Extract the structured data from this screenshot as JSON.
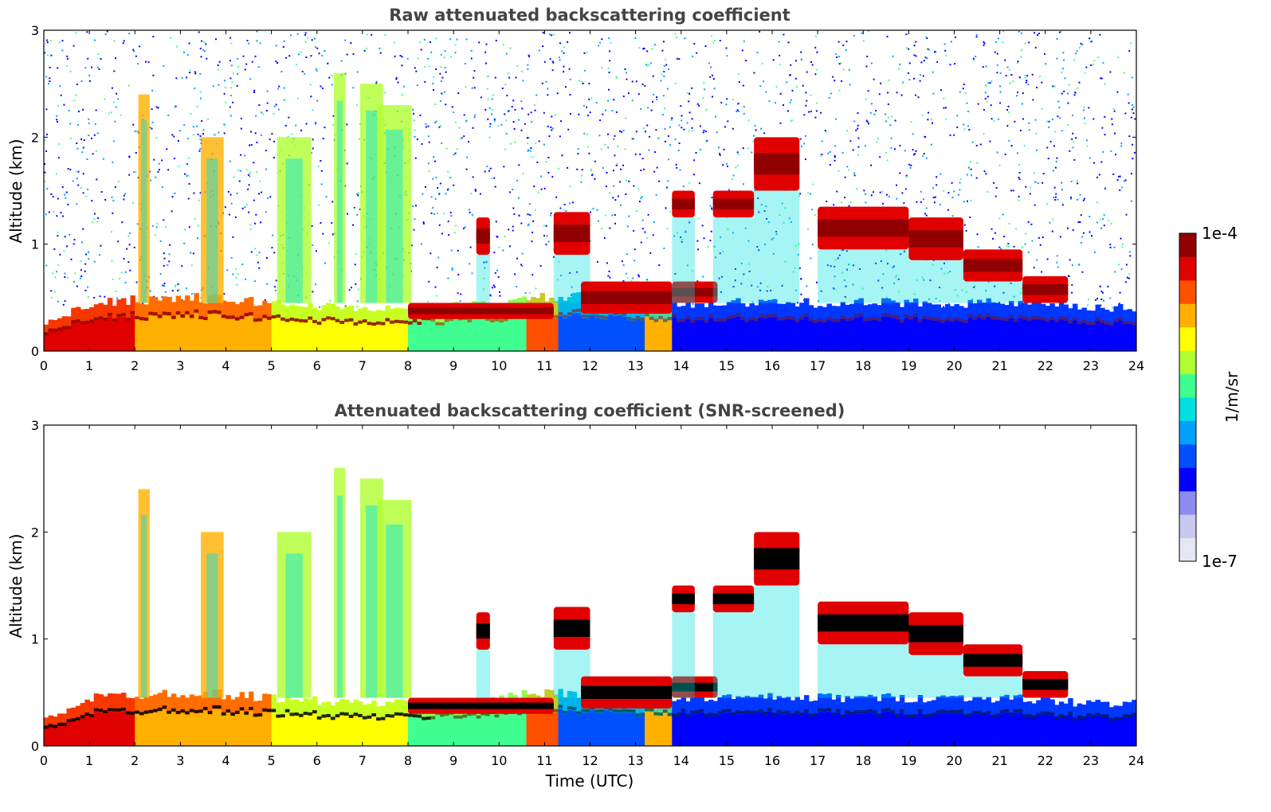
{
  "chart_data": [
    {
      "type": "heatmap",
      "title": "Raw attenuated backscattering coefficient",
      "xlabel": "",
      "ylabel": "Altitude (km)",
      "xlim": [
        0,
        24
      ],
      "ylim": [
        0,
        3
      ],
      "x_ticks": [
        "0",
        "1",
        "2",
        "3",
        "4",
        "5",
        "6",
        "7",
        "8",
        "9",
        "10",
        "11",
        "12",
        "13",
        "14",
        "15",
        "16",
        "17",
        "18",
        "19",
        "20",
        "21",
        "22",
        "23",
        "24"
      ],
      "y_ticks": [
        "0",
        "1",
        "2",
        "3"
      ],
      "screened": false,
      "boundary_layer_top_km": [
        [
          0,
          0.25
        ],
        [
          1,
          0.45
        ],
        [
          2,
          0.48
        ],
        [
          3,
          0.5
        ],
        [
          4,
          0.48
        ],
        [
          5,
          0.45
        ],
        [
          6,
          0.42
        ],
        [
          7,
          0.4
        ],
        [
          8,
          0.4
        ],
        [
          9,
          0.42
        ],
        [
          10,
          0.45
        ],
        [
          11,
          0.5
        ],
        [
          12,
          0.5
        ],
        [
          13,
          0.45
        ],
        [
          14,
          0.45
        ],
        [
          15,
          0.45
        ],
        [
          16,
          0.45
        ],
        [
          17,
          0.45
        ],
        [
          18,
          0.45
        ],
        [
          19,
          0.45
        ],
        [
          20,
          0.45
        ],
        [
          21,
          0.45
        ],
        [
          22,
          0.42
        ],
        [
          23,
          0.4
        ],
        [
          24,
          0.4
        ]
      ],
      "cloud_layers": [
        {
          "t0": 8.0,
          "t1": 11.2,
          "base_km": 0.3,
          "top_km": 0.45
        },
        {
          "t0": 9.5,
          "t1": 9.8,
          "base_km": 0.9,
          "top_km": 1.25
        },
        {
          "t0": 11.2,
          "t1": 12.0,
          "base_km": 0.9,
          "top_km": 1.3
        },
        {
          "t0": 11.8,
          "t1": 13.8,
          "base_km": 0.35,
          "top_km": 0.65
        },
        {
          "t0": 13.8,
          "t1": 14.8,
          "base_km": 0.45,
          "top_km": 0.65
        },
        {
          "t0": 13.8,
          "t1": 14.3,
          "base_km": 1.25,
          "top_km": 1.5
        },
        {
          "t0": 14.7,
          "t1": 15.6,
          "base_km": 1.25,
          "top_km": 1.5
        },
        {
          "t0": 15.6,
          "t1": 16.6,
          "base_km": 1.5,
          "top_km": 2.0
        },
        {
          "t0": 17.0,
          "t1": 19.0,
          "base_km": 0.95,
          "top_km": 1.35
        },
        {
          "t0": 19.0,
          "t1": 20.2,
          "base_km": 0.85,
          "top_km": 1.25
        },
        {
          "t0": 20.2,
          "t1": 21.5,
          "base_km": 0.65,
          "top_km": 0.95
        },
        {
          "t0": 21.5,
          "t1": 22.5,
          "base_km": 0.45,
          "top_km": 0.7
        }
      ],
      "aerosol_plumes": [
        {
          "t": 2.2,
          "top_km": 2.4
        },
        {
          "t": 3.7,
          "top_km": 2.0
        },
        {
          "t": 5.5,
          "top_km": 2.0
        },
        {
          "t": 6.5,
          "top_km": 2.6
        },
        {
          "t": 7.2,
          "top_km": 2.5
        },
        {
          "t": 7.7,
          "top_km": 2.3
        }
      ]
    },
    {
      "type": "heatmap",
      "title": "Attenuated backscattering coefficient (SNR-screened)",
      "xlabel": "Time (UTC)",
      "ylabel": "Altitude (km)",
      "xlim": [
        0,
        24
      ],
      "ylim": [
        0,
        3
      ],
      "x_ticks": [
        "0",
        "1",
        "2",
        "3",
        "4",
        "5",
        "6",
        "7",
        "8",
        "9",
        "10",
        "11",
        "12",
        "13",
        "14",
        "15",
        "16",
        "17",
        "18",
        "19",
        "20",
        "21",
        "22",
        "23",
        "24"
      ],
      "y_ticks": [
        "0",
        "1",
        "2",
        "3"
      ],
      "screened": true
    }
  ],
  "colorbar": {
    "label": "1/m/sr",
    "max_label": "1e-4",
    "min_label": "1e-7",
    "colors": [
      "#e6e6f5",
      "#c8c8f0",
      "#8c8cf0",
      "#0000ff",
      "#0050ff",
      "#00a0ff",
      "#00e0e0",
      "#40ff90",
      "#b0ff30",
      "#ffff00",
      "#ffb000",
      "#ff5000",
      "#e00000",
      "#900000"
    ]
  }
}
